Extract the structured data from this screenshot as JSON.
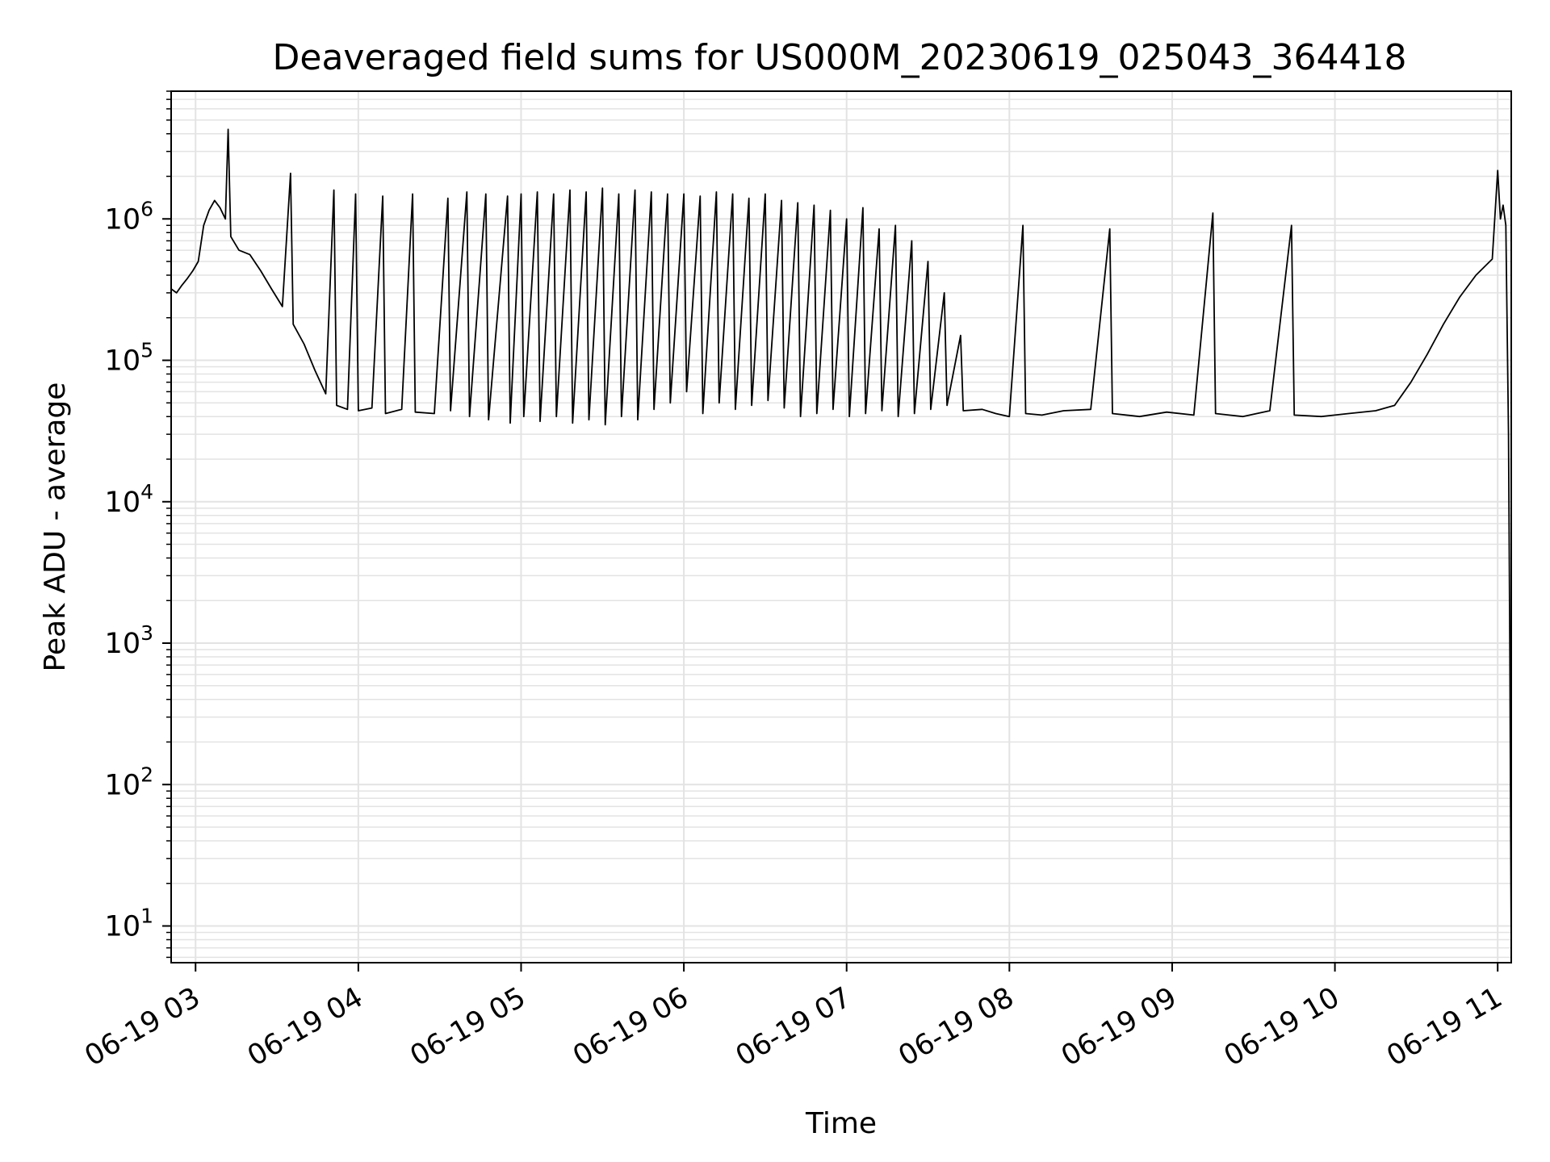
{
  "chart_data": {
    "type": "line",
    "title": "Deaveraged field sums for US000M_20230619_025043_364418",
    "xlabel": "Time",
    "ylabel": "Peak ADU - average",
    "yscale": "log",
    "xlim": [
      "2023-06-19T02:51",
      "2023-06-19T11:05"
    ],
    "ylim": [
      5.5,
      8000000
    ],
    "grid": true,
    "line_color": "#000000",
    "grid_color": "#e3e3e3",
    "x_ticks": [
      {
        "t": "2023-06-19T03:00",
        "label": "06-19 03"
      },
      {
        "t": "2023-06-19T04:00",
        "label": "06-19 04"
      },
      {
        "t": "2023-06-19T05:00",
        "label": "06-19 05"
      },
      {
        "t": "2023-06-19T06:00",
        "label": "06-19 06"
      },
      {
        "t": "2023-06-19T07:00",
        "label": "06-19 07"
      },
      {
        "t": "2023-06-19T08:00",
        "label": "06-19 08"
      },
      {
        "t": "2023-06-19T09:00",
        "label": "06-19 09"
      },
      {
        "t": "2023-06-19T10:00",
        "label": "06-19 10"
      },
      {
        "t": "2023-06-19T11:00",
        "label": "06-19 11"
      }
    ],
    "y_ticks": [
      {
        "value": 10,
        "base": "10",
        "exp": "1"
      },
      {
        "value": 100,
        "base": "10",
        "exp": "2"
      },
      {
        "value": 1000,
        "base": "10",
        "exp": "3"
      },
      {
        "value": 10000,
        "base": "10",
        "exp": "4"
      },
      {
        "value": 100000,
        "base": "10",
        "exp": "5"
      },
      {
        "value": 1000000,
        "base": "10",
        "exp": "6"
      }
    ],
    "series": [
      {
        "points": [
          [
            "2023-06-19T02:51",
            320000
          ],
          [
            "2023-06-19T02:53",
            300000
          ],
          [
            "2023-06-19T02:55",
            340000
          ],
          [
            "2023-06-19T02:57",
            380000
          ],
          [
            "2023-06-19T02:59",
            430000
          ],
          [
            "2023-06-19T03:01",
            500000
          ],
          [
            "2023-06-19T03:03",
            900000
          ],
          [
            "2023-06-19T03:05",
            1150000
          ],
          [
            "2023-06-19T03:07",
            1350000
          ],
          [
            "2023-06-19T03:09",
            1200000
          ],
          [
            "2023-06-19T03:11",
            1000000
          ],
          [
            "2023-06-19T03:12",
            4300000
          ],
          [
            "2023-06-19T03:13",
            750000
          ],
          [
            "2023-06-19T03:16",
            600000
          ],
          [
            "2023-06-19T03:20",
            560000
          ],
          [
            "2023-06-19T03:24",
            430000
          ],
          [
            "2023-06-19T03:28",
            320000
          ],
          [
            "2023-06-19T03:32",
            240000
          ],
          [
            "2023-06-19T03:35",
            2100000
          ],
          [
            "2023-06-19T03:36",
            180000
          ],
          [
            "2023-06-19T03:40",
            130000
          ],
          [
            "2023-06-19T03:44",
            85000
          ],
          [
            "2023-06-19T03:48",
            58000
          ],
          [
            "2023-06-19T03:51",
            1600000
          ],
          [
            "2023-06-19T03:52",
            48000
          ],
          [
            "2023-06-19T03:56",
            45000
          ],
          [
            "2023-06-19T03:59",
            1500000
          ],
          [
            "2023-06-19T04:00",
            44000
          ],
          [
            "2023-06-19T04:05",
            46000
          ],
          [
            "2023-06-19T04:09",
            1450000
          ],
          [
            "2023-06-19T04:10",
            42000
          ],
          [
            "2023-06-19T04:16",
            45000
          ],
          [
            "2023-06-19T04:20",
            1500000
          ],
          [
            "2023-06-19T04:21",
            43000
          ],
          [
            "2023-06-19T04:28",
            42000
          ],
          [
            "2023-06-19T04:33",
            1400000
          ],
          [
            "2023-06-19T04:34",
            44000
          ],
          [
            "2023-06-19T04:40",
            1550000
          ],
          [
            "2023-06-19T04:41",
            40000
          ],
          [
            "2023-06-19T04:47",
            1500000
          ],
          [
            "2023-06-19T04:48",
            38000
          ],
          [
            "2023-06-19T04:55",
            1450000
          ],
          [
            "2023-06-19T04:56",
            36000
          ],
          [
            "2023-06-19T05:00",
            1500000
          ],
          [
            "2023-06-19T05:01",
            40000
          ],
          [
            "2023-06-19T05:06",
            1550000
          ],
          [
            "2023-06-19T05:07",
            37000
          ],
          [
            "2023-06-19T05:12",
            1500000
          ],
          [
            "2023-06-19T05:13",
            40000
          ],
          [
            "2023-06-19T05:18",
            1600000
          ],
          [
            "2023-06-19T05:19",
            36000
          ],
          [
            "2023-06-19T05:24",
            1550000
          ],
          [
            "2023-06-19T05:25",
            38000
          ],
          [
            "2023-06-19T05:30",
            1650000
          ],
          [
            "2023-06-19T05:31",
            35000
          ],
          [
            "2023-06-19T05:36",
            1500000
          ],
          [
            "2023-06-19T05:37",
            40000
          ],
          [
            "2023-06-19T05:42",
            1600000
          ],
          [
            "2023-06-19T05:43",
            38000
          ],
          [
            "2023-06-19T05:48",
            1550000
          ],
          [
            "2023-06-19T05:49",
            45000
          ],
          [
            "2023-06-19T05:54",
            1500000
          ],
          [
            "2023-06-19T05:55",
            50000
          ],
          [
            "2023-06-19T06:00",
            1500000
          ],
          [
            "2023-06-19T06:01",
            60000
          ],
          [
            "2023-06-19T06:06",
            1450000
          ],
          [
            "2023-06-19T06:07",
            42000
          ],
          [
            "2023-06-19T06:12",
            1550000
          ],
          [
            "2023-06-19T06:13",
            50000
          ],
          [
            "2023-06-19T06:18",
            1500000
          ],
          [
            "2023-06-19T06:19",
            45000
          ],
          [
            "2023-06-19T06:24",
            1400000
          ],
          [
            "2023-06-19T06:25",
            48000
          ],
          [
            "2023-06-19T06:30",
            1500000
          ],
          [
            "2023-06-19T06:31",
            52000
          ],
          [
            "2023-06-19T06:36",
            1350000
          ],
          [
            "2023-06-19T06:37",
            46000
          ],
          [
            "2023-06-19T06:42",
            1300000
          ],
          [
            "2023-06-19T06:43",
            40000
          ],
          [
            "2023-06-19T06:48",
            1250000
          ],
          [
            "2023-06-19T06:49",
            42000
          ],
          [
            "2023-06-19T06:54",
            1150000
          ],
          [
            "2023-06-19T06:55",
            45000
          ],
          [
            "2023-06-19T07:00",
            1000000
          ],
          [
            "2023-06-19T07:01",
            40000
          ],
          [
            "2023-06-19T07:06",
            1200000
          ],
          [
            "2023-06-19T07:07",
            42000
          ],
          [
            "2023-06-19T07:12",
            850000
          ],
          [
            "2023-06-19T07:13",
            44000
          ],
          [
            "2023-06-19T07:18",
            900000
          ],
          [
            "2023-06-19T07:19",
            40000
          ],
          [
            "2023-06-19T07:24",
            700000
          ],
          [
            "2023-06-19T07:25",
            42000
          ],
          [
            "2023-06-19T07:30",
            500000
          ],
          [
            "2023-06-19T07:31",
            45000
          ],
          [
            "2023-06-19T07:36",
            300000
          ],
          [
            "2023-06-19T07:37",
            48000
          ],
          [
            "2023-06-19T07:42",
            150000
          ],
          [
            "2023-06-19T07:43",
            44000
          ],
          [
            "2023-06-19T07:50",
            45000
          ],
          [
            "2023-06-19T07:55",
            42000
          ],
          [
            "2023-06-19T08:00",
            40000
          ],
          [
            "2023-06-19T08:05",
            900000
          ],
          [
            "2023-06-19T08:06",
            42000
          ],
          [
            "2023-06-19T08:12",
            41000
          ],
          [
            "2023-06-19T08:20",
            44000
          ],
          [
            "2023-06-19T08:30",
            45000
          ],
          [
            "2023-06-19T08:37",
            850000
          ],
          [
            "2023-06-19T08:38",
            42000
          ],
          [
            "2023-06-19T08:48",
            40000
          ],
          [
            "2023-06-19T08:58",
            43000
          ],
          [
            "2023-06-19T09:08",
            41000
          ],
          [
            "2023-06-19T09:15",
            1100000
          ],
          [
            "2023-06-19T09:16",
            42000
          ],
          [
            "2023-06-19T09:26",
            40000
          ],
          [
            "2023-06-19T09:36",
            44000
          ],
          [
            "2023-06-19T09:44",
            900000
          ],
          [
            "2023-06-19T09:45",
            41000
          ],
          [
            "2023-06-19T09:55",
            40000
          ],
          [
            "2023-06-19T10:05",
            42000
          ],
          [
            "2023-06-19T10:15",
            44000
          ],
          [
            "2023-06-19T10:22",
            48000
          ],
          [
            "2023-06-19T10:28",
            70000
          ],
          [
            "2023-06-19T10:34",
            110000
          ],
          [
            "2023-06-19T10:40",
            180000
          ],
          [
            "2023-06-19T10:46",
            280000
          ],
          [
            "2023-06-19T10:52",
            400000
          ],
          [
            "2023-06-19T10:58",
            520000
          ],
          [
            "2023-06-19T11:00",
            2200000
          ],
          [
            "2023-06-19T11:01",
            1000000
          ],
          [
            "2023-06-19T11:02",
            1250000
          ],
          [
            "2023-06-19T11:03",
            900000
          ],
          [
            "2023-06-19T11:04",
            30000
          ],
          [
            "2023-06-19T11:04:30",
            800
          ],
          [
            "2023-06-19T11:05",
            6
          ]
        ]
      }
    ]
  }
}
